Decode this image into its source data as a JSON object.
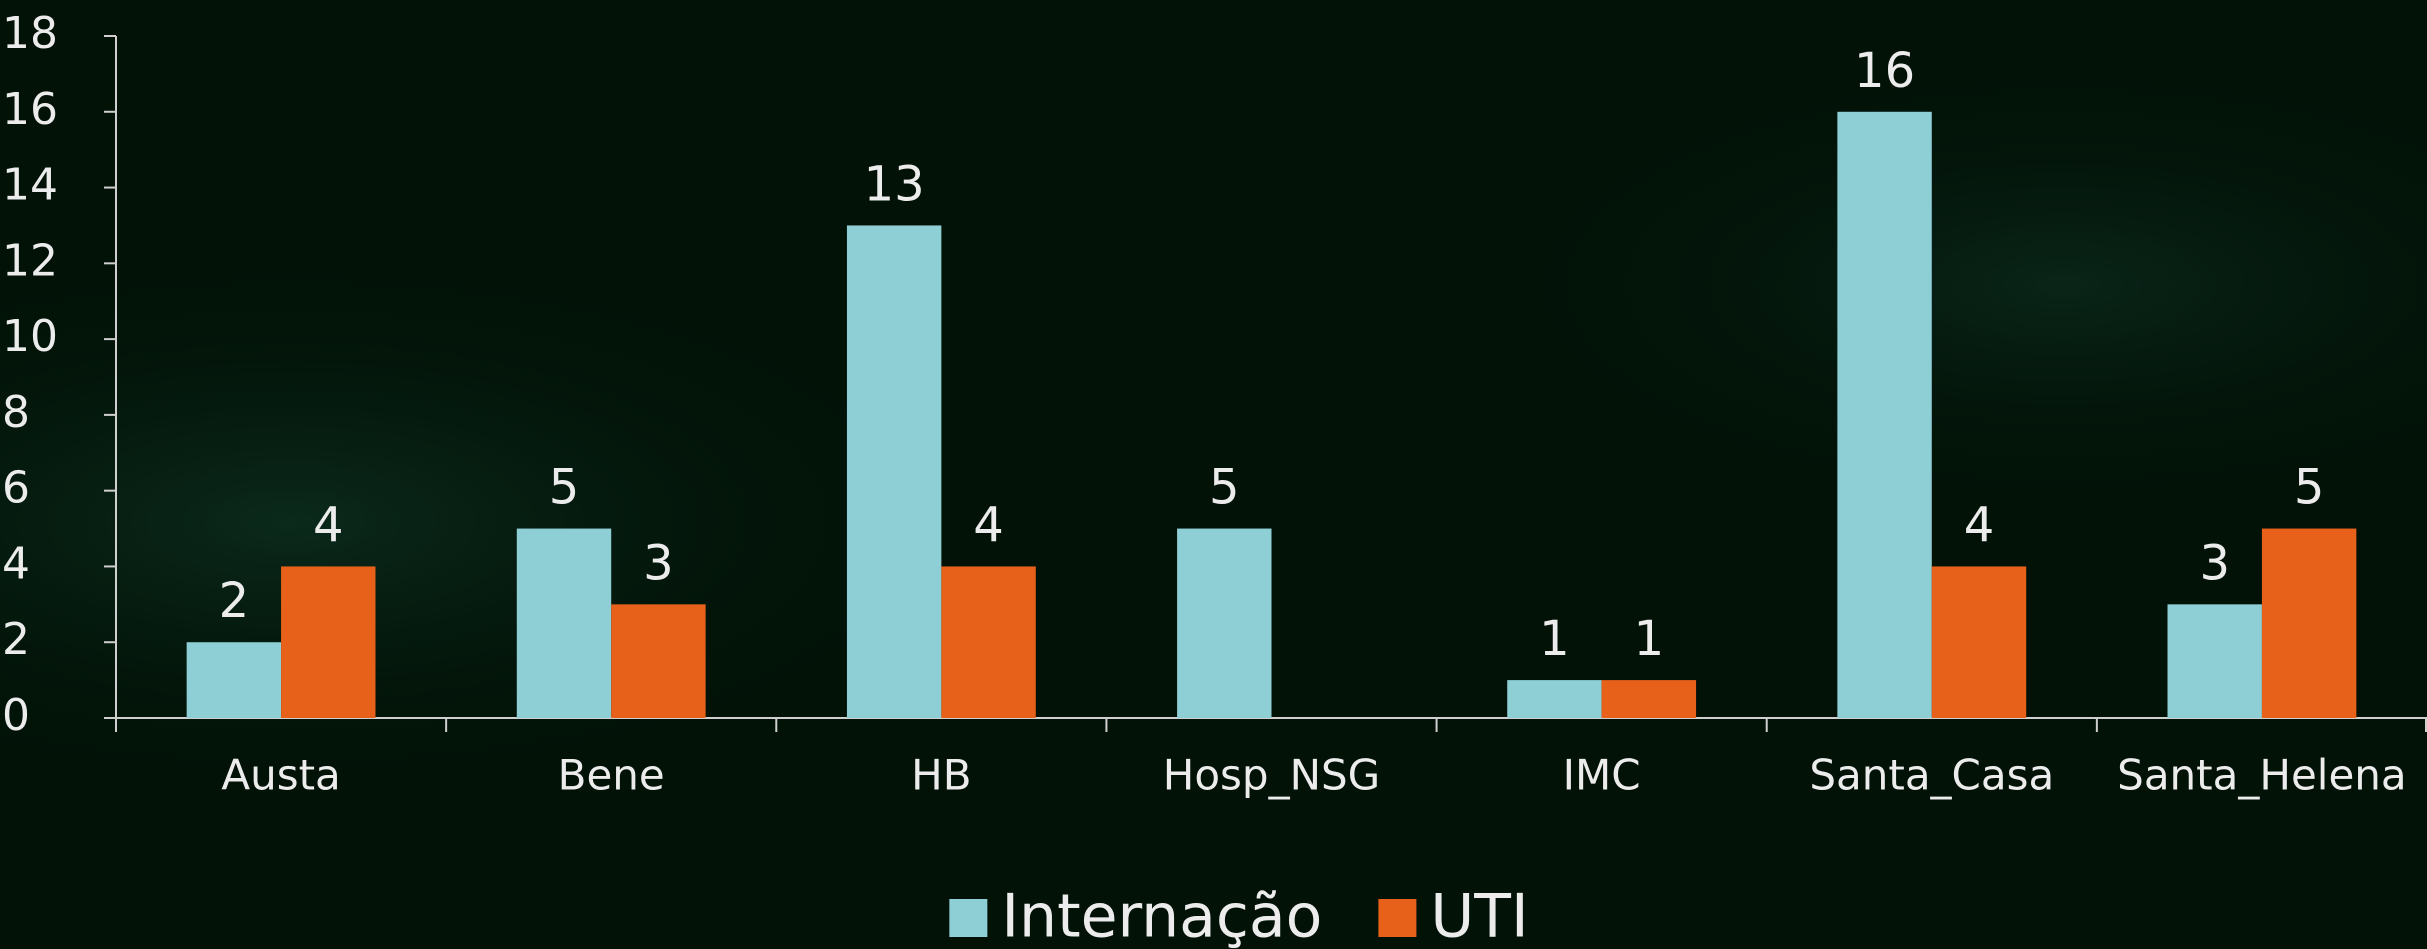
{
  "chart_data": {
    "type": "bar",
    "categories": [
      "Austa",
      "Bene",
      "HB",
      "Hosp_NSG",
      "IMC",
      "Santa_Casa",
      "Santa_Helena"
    ],
    "series": [
      {
        "name": "Internação",
        "color": "#8ecfd6",
        "values": [
          2,
          5,
          13,
          5,
          1,
          16,
          3
        ]
      },
      {
        "name": "UTI",
        "color": "#e8611a",
        "values": [
          4,
          3,
          4,
          null,
          1,
          4,
          5
        ]
      }
    ],
    "ylim": [
      0,
      18
    ],
    "yticks": [
      0,
      2,
      4,
      6,
      8,
      10,
      12,
      14,
      16,
      18
    ],
    "legend": "bottom"
  }
}
